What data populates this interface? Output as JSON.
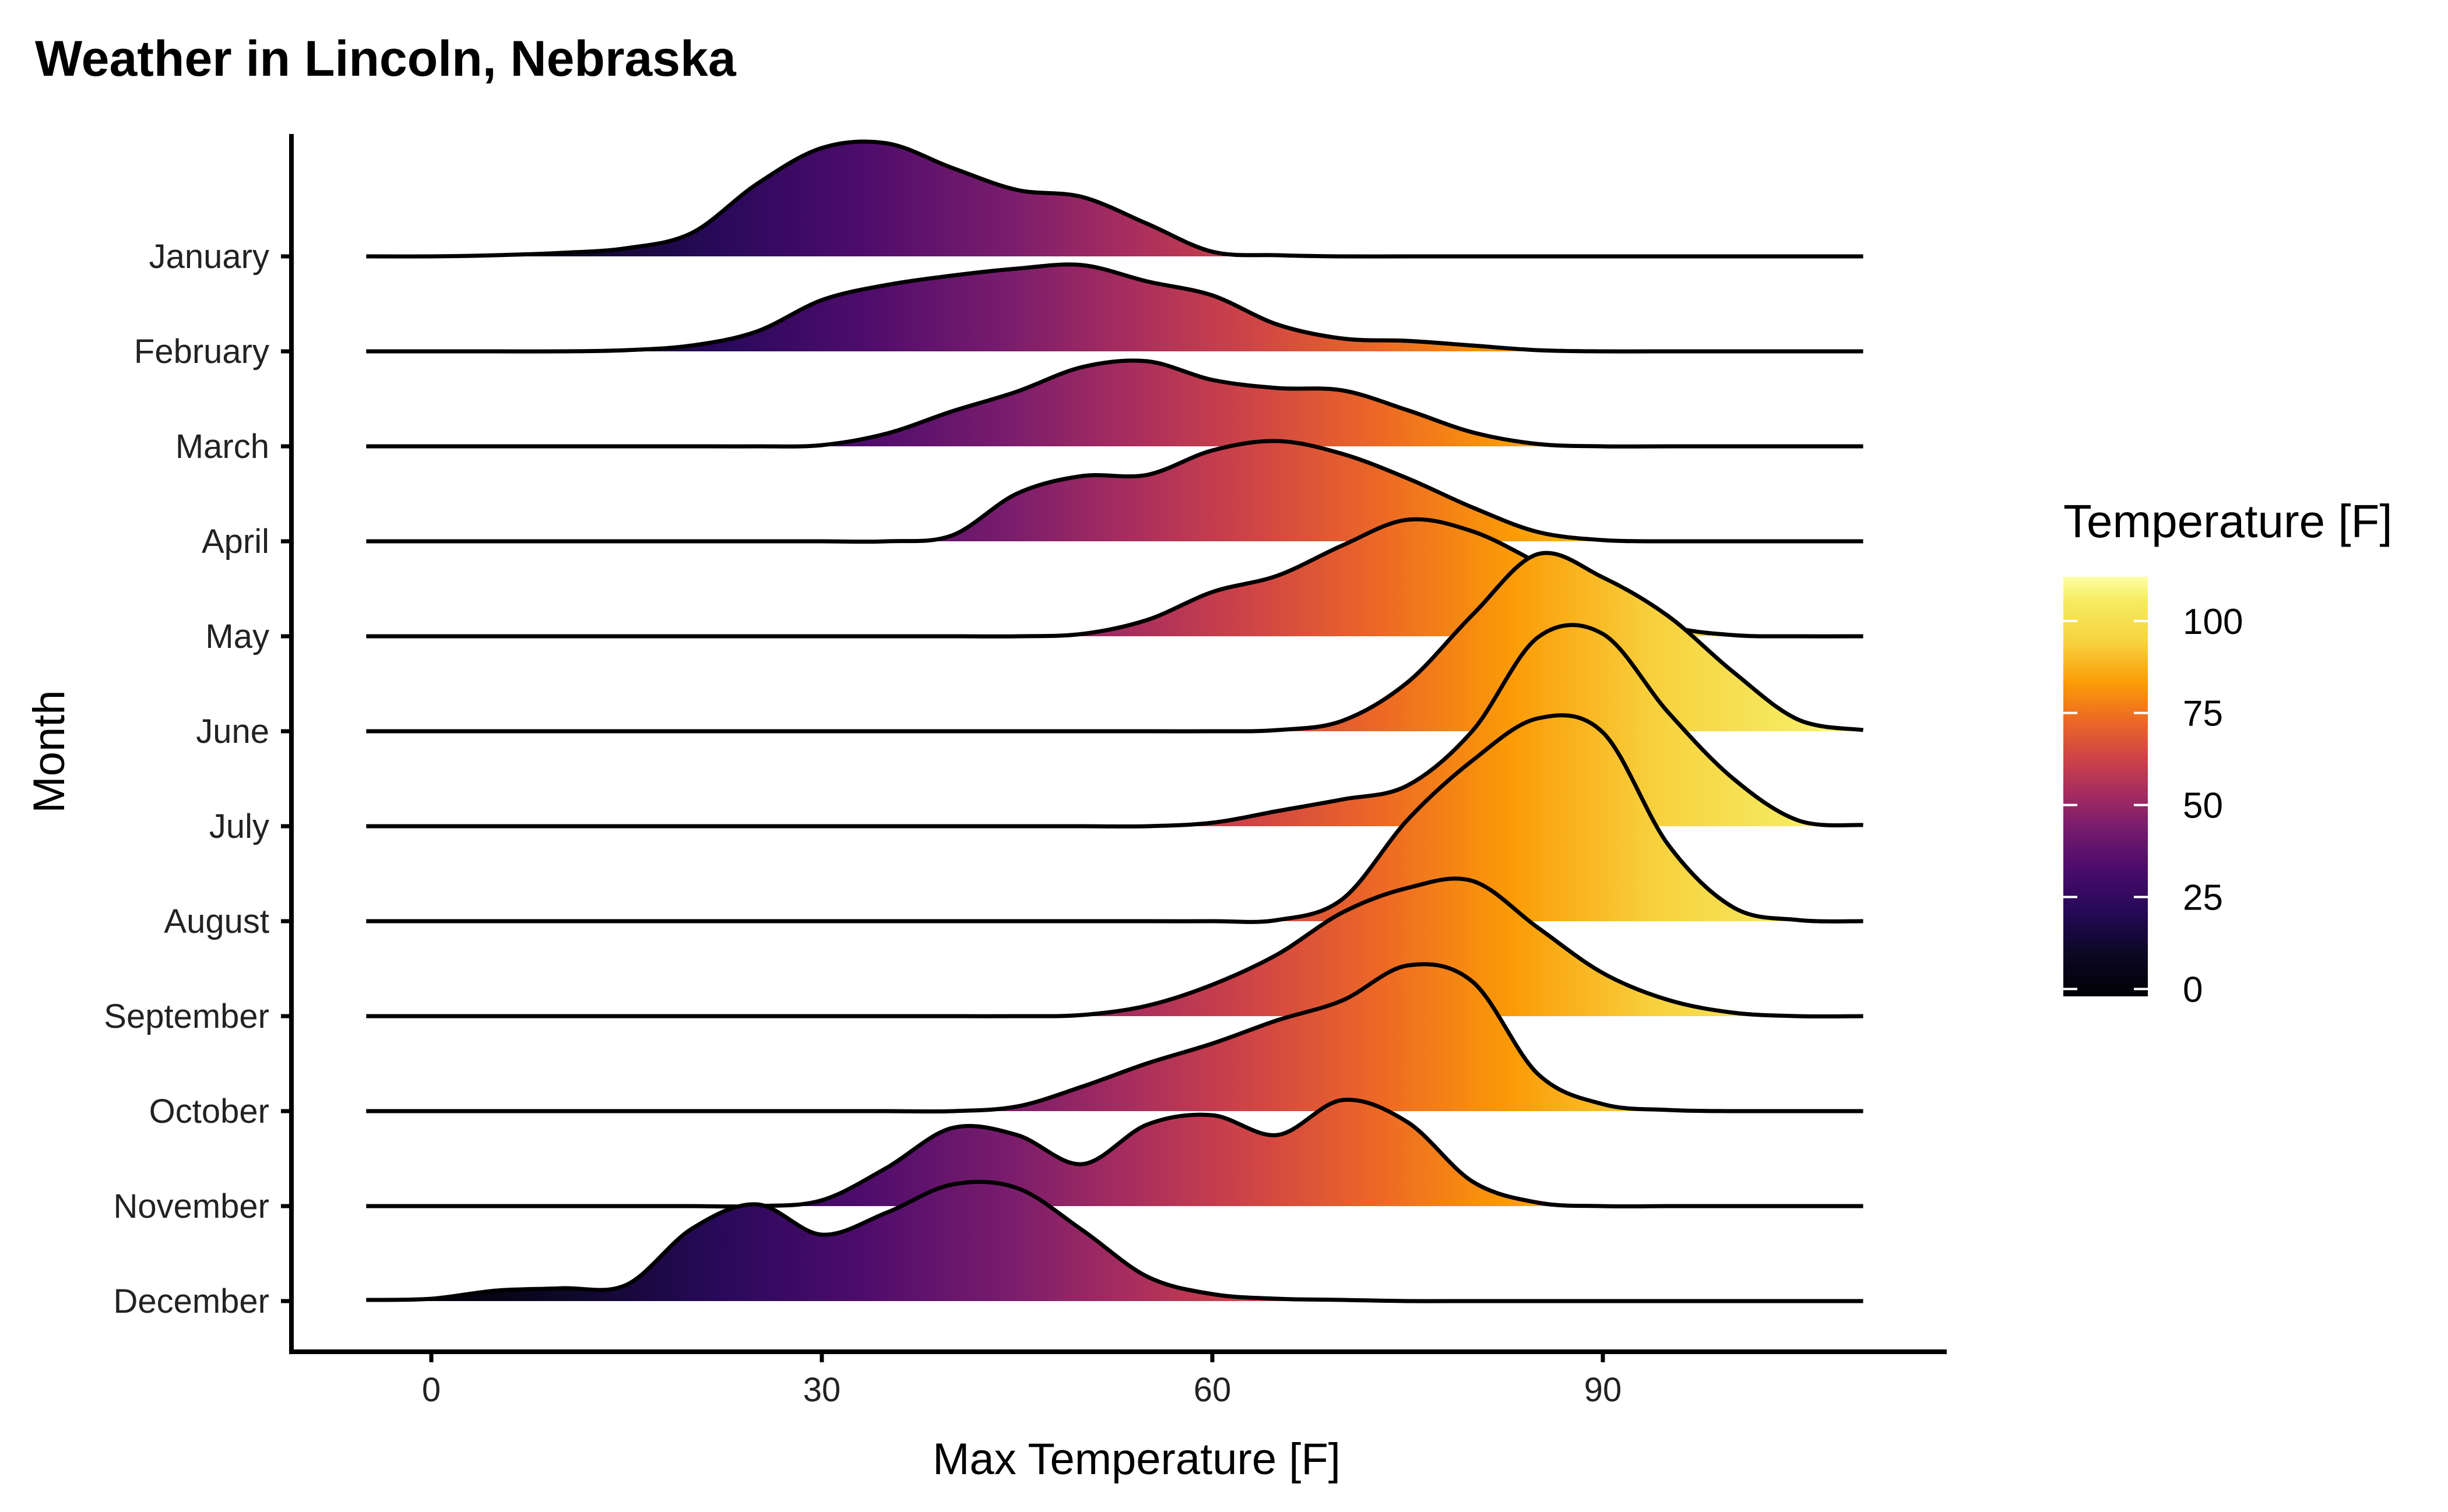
{
  "chart_data": {
    "type": "area",
    "subtype": "ridgeline",
    "title": "Weather in Lincoln, Nebraska",
    "xlabel": "Max Temperature [F]",
    "ylabel": "Month",
    "xlim": [
      -10,
      116
    ],
    "xticks": [
      0,
      30,
      60,
      90
    ],
    "x_tick_labels": [
      "0",
      "30",
      "60",
      "90"
    ],
    "grid": false,
    "legend": {
      "title": "Temperature [F]",
      "placement": "right",
      "type": "colorbar",
      "palette": "inferno",
      "limits": [
        -2,
        112
      ],
      "ticks": [
        0,
        25,
        50,
        75,
        100
      ],
      "tick_labels": [
        "0",
        "25",
        "50",
        "75",
        "100"
      ]
    },
    "colors": {
      "gradient_stops": [
        {
          "value": -2,
          "color": "#000004"
        },
        {
          "value": 10,
          "color": "#0c0826"
        },
        {
          "value": 22,
          "color": "#28095a"
        },
        {
          "value": 33,
          "color": "#4d0c6b"
        },
        {
          "value": 44,
          "color": "#781c6d"
        },
        {
          "value": 53,
          "color": "#a52c60"
        },
        {
          "value": 63,
          "color": "#cf4446"
        },
        {
          "value": 73,
          "color": "#ed6925"
        },
        {
          "value": 83,
          "color": "#fb9b06"
        },
        {
          "value": 94,
          "color": "#f7d13d"
        },
        {
          "value": 106,
          "color": "#f6ed64"
        },
        {
          "value": 112,
          "color": "#fcffa4"
        }
      ],
      "line": "#000000",
      "axis": "#000000"
    },
    "x": [
      -5,
      0,
      5,
      10,
      15,
      20,
      25,
      30,
      35,
      40,
      45,
      50,
      55,
      60,
      65,
      70,
      75,
      80,
      85,
      90,
      95,
      100,
      105,
      110
    ],
    "series": [
      {
        "name": "January",
        "values": [
          0,
          0,
          0.01,
          0.03,
          0.07,
          0.2,
          0.62,
          0.93,
          0.97,
          0.76,
          0.57,
          0.51,
          0.28,
          0.04,
          0.01,
          0,
          0,
          0,
          0,
          0,
          0,
          0,
          0,
          0
        ]
      },
      {
        "name": "February",
        "values": [
          0,
          0,
          0,
          0,
          0.01,
          0.05,
          0.17,
          0.44,
          0.57,
          0.65,
          0.71,
          0.74,
          0.6,
          0.48,
          0.23,
          0.11,
          0.09,
          0.05,
          0.01,
          0,
          0,
          0,
          0,
          0
        ]
      },
      {
        "name": "March",
        "values": [
          0,
          0,
          0,
          0,
          0,
          0,
          0,
          0.01,
          0.11,
          0.3,
          0.47,
          0.68,
          0.73,
          0.57,
          0.5,
          0.48,
          0.31,
          0.12,
          0.02,
          0,
          0,
          0,
          0,
          0
        ]
      },
      {
        "name": "April",
        "values": [
          0,
          0,
          0,
          0,
          0,
          0,
          0,
          0,
          0,
          0.05,
          0.41,
          0.56,
          0.57,
          0.78,
          0.86,
          0.75,
          0.54,
          0.29,
          0.08,
          0.01,
          0,
          0,
          0,
          0
        ]
      },
      {
        "name": "May",
        "values": [
          0,
          0,
          0,
          0,
          0,
          0,
          0,
          0,
          0,
          0,
          0,
          0.02,
          0.14,
          0.38,
          0.52,
          0.78,
          1.0,
          0.9,
          0.63,
          0.33,
          0.09,
          0.01,
          0,
          0
        ]
      },
      {
        "name": "June",
        "values": [
          0,
          0,
          0,
          0,
          0,
          0,
          0,
          0,
          0,
          0,
          0,
          0,
          0,
          0,
          0.01,
          0.09,
          0.42,
          1.0,
          1.52,
          1.32,
          0.99,
          0.51,
          0.1,
          0.01
        ]
      },
      {
        "name": "July",
        "values": [
          0,
          0,
          0,
          0,
          0,
          0,
          0,
          0,
          0,
          0,
          0,
          0,
          0,
          0.03,
          0.13,
          0.23,
          0.35,
          0.82,
          1.62,
          1.65,
          0.98,
          0.41,
          0.05,
          0.01
        ]
      },
      {
        "name": "August",
        "values": [
          0,
          0,
          0,
          0,
          0,
          0,
          0,
          0,
          0,
          0,
          0,
          0,
          0,
          0,
          0.01,
          0.19,
          0.87,
          1.38,
          1.74,
          1.62,
          0.66,
          0.12,
          0.01,
          0
        ]
      },
      {
        "name": "September",
        "values": [
          0,
          0,
          0,
          0,
          0,
          0,
          0,
          0,
          0,
          0,
          0,
          0.01,
          0.09,
          0.27,
          0.53,
          0.89,
          1.1,
          1.16,
          0.76,
          0.37,
          0.14,
          0.03,
          0,
          0
        ]
      },
      {
        "name": "October",
        "values": [
          0,
          0,
          0,
          0,
          0,
          0,
          0,
          0,
          0,
          0,
          0.04,
          0.21,
          0.41,
          0.58,
          0.78,
          0.95,
          1.25,
          1.11,
          0.32,
          0.06,
          0.01,
          0,
          0,
          0
        ]
      },
      {
        "name": "November",
        "values": [
          0,
          0,
          0,
          0,
          0,
          0,
          0,
          0.05,
          0.33,
          0.67,
          0.61,
          0.36,
          0.7,
          0.78,
          0.61,
          0.91,
          0.72,
          0.21,
          0.03,
          0,
          0,
          0,
          0,
          0
        ]
      },
      {
        "name": "December",
        "values": [
          0.01,
          0.02,
          0.09,
          0.11,
          0.14,
          0.62,
          0.83,
          0.57,
          0.76,
          1.0,
          0.97,
          0.61,
          0.21,
          0.06,
          0.02,
          0.01,
          0,
          0,
          0,
          0,
          0,
          0,
          0,
          0
        ]
      }
    ]
  }
}
